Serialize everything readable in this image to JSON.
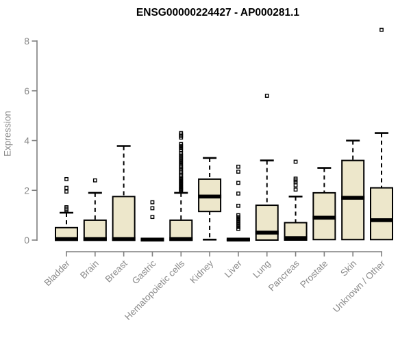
{
  "title": "ENSG00000224427 - AP000281.1",
  "chart_data": {
    "type": "boxplot",
    "title": "ENSG00000224427 - AP000281.1",
    "xlabel": "",
    "ylabel": "Expression",
    "ylim": [
      0,
      8
    ],
    "yticks": [
      0,
      2,
      4,
      6,
      8
    ],
    "grid": false,
    "legend": "none",
    "categories": [
      "Bladder",
      "Brain",
      "Breast",
      "Gastric",
      "Hematopoietic cells",
      "Kidney",
      "Liver",
      "Lung",
      "Pancreas",
      "Prostate",
      "Skin",
      "Unknown / Other"
    ],
    "series": [
      {
        "name": "Bladder",
        "whisker_low": 0,
        "q1": 0,
        "median": 0.04,
        "q3": 0.5,
        "whisker_high": 1.1,
        "outliers": [
          1.2,
          1.26,
          1.32,
          1.95,
          2.1,
          2.45
        ]
      },
      {
        "name": "Brain",
        "whisker_low": 0,
        "q1": 0,
        "median": 0.04,
        "q3": 0.8,
        "whisker_high": 1.9,
        "outliers": [
          2.4
        ]
      },
      {
        "name": "Breast",
        "whisker_low": 0,
        "q1": 0,
        "median": 0.04,
        "q3": 1.75,
        "whisker_high": 3.78,
        "outliers": []
      },
      {
        "name": "Gastric",
        "whisker_low": 0,
        "q1": 0,
        "median": 0.02,
        "q3": 0.03,
        "whisker_high": 0.03,
        "outliers": [
          0.93,
          1.28,
          1.52
        ]
      },
      {
        "name": "Hematopoietic cells",
        "whisker_low": 0,
        "q1": 0,
        "median": 0.04,
        "q3": 0.8,
        "whisker_high": 1.9,
        "outliers": [
          1.98,
          2.02,
          2.06,
          2.1,
          2.15,
          2.2,
          2.25,
          2.3,
          2.35,
          2.4,
          2.45,
          2.5,
          2.56,
          2.62,
          2.68,
          2.74,
          2.8,
          2.87,
          2.94,
          3.0,
          3.08,
          3.16,
          3.24,
          3.32,
          3.4,
          3.48,
          3.62,
          3.7,
          3.78,
          3.86,
          4.12,
          4.18,
          4.24,
          4.3
        ]
      },
      {
        "name": "Kidney",
        "whisker_low": 0.02,
        "q1": 1.15,
        "median": 1.75,
        "q3": 2.45,
        "whisker_high": 3.3,
        "outliers": []
      },
      {
        "name": "Liver",
        "whisker_low": 0,
        "q1": 0,
        "median": 0.02,
        "q3": 0.03,
        "whisker_high": 0.03,
        "outliers": [
          0.45,
          0.52,
          0.6,
          0.68,
          0.76,
          0.84,
          0.92,
          1.0,
          1.38,
          1.87,
          2.3,
          2.75,
          2.95
        ]
      },
      {
        "name": "Lung",
        "whisker_low": 0,
        "q1": 0,
        "median": 0.3,
        "q3": 1.4,
        "whisker_high": 3.2,
        "outliers": [
          5.8
        ]
      },
      {
        "name": "Pancreas",
        "whisker_low": 0,
        "q1": 0,
        "median": 0.08,
        "q3": 0.7,
        "whisker_high": 1.75,
        "outliers": [
          2.03,
          2.2,
          2.33,
          2.4,
          2.47,
          3.15
        ]
      },
      {
        "name": "Prostate",
        "whisker_low": 0,
        "q1": 0.02,
        "median": 0.9,
        "q3": 1.9,
        "whisker_high": 2.9,
        "outliers": []
      },
      {
        "name": "Skin",
        "whisker_low": 0,
        "q1": 0.02,
        "median": 1.7,
        "q3": 3.2,
        "whisker_high": 4.0,
        "outliers": []
      },
      {
        "name": "Unknown / Other",
        "whisker_low": 0,
        "q1": 0.02,
        "median": 0.8,
        "q3": 2.1,
        "whisker_high": 4.3,
        "outliers": [
          8.45
        ]
      }
    ],
    "colors": {
      "box_fill": "#EDE7CB",
      "box_border": "#000000",
      "axis": "#7F7F7F",
      "text": "#8A8A8A",
      "title": "#000000"
    }
  }
}
